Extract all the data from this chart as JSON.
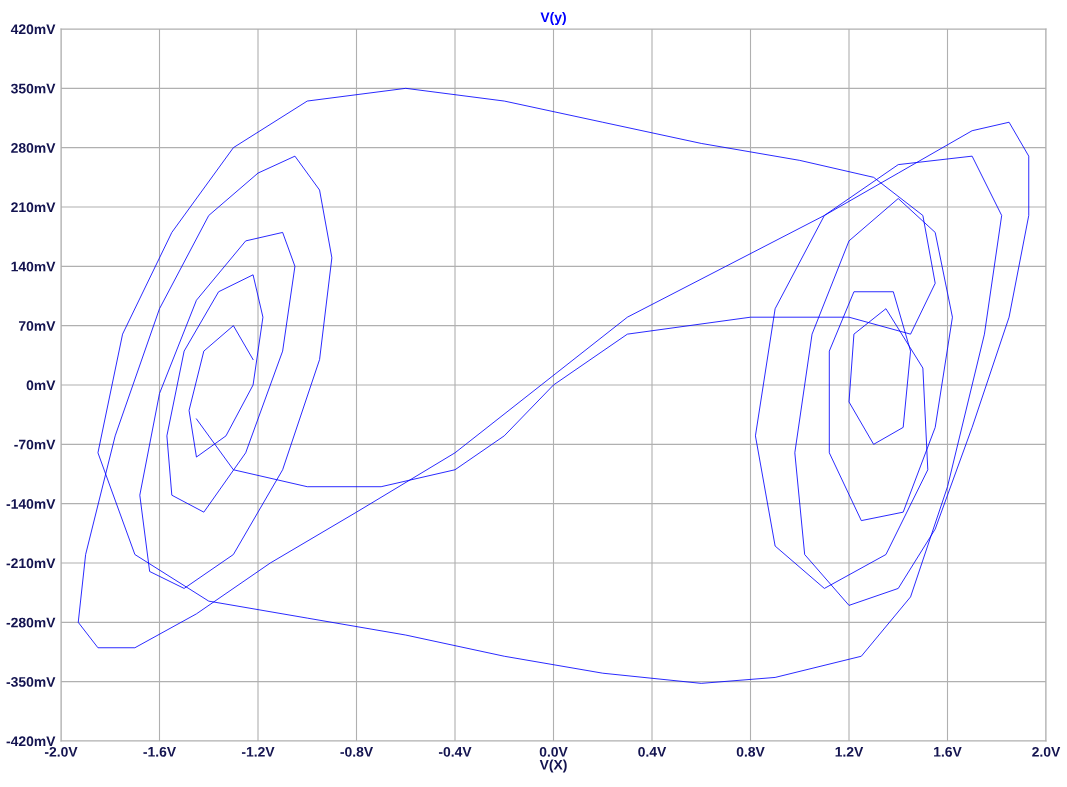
{
  "chart_data": {
    "type": "line",
    "title": "V(y)",
    "xlabel": "V(X)",
    "series": [
      {
        "color": "#0000ff",
        "x": [
          -1.22,
          -1.3,
          -1.42,
          -1.48,
          -1.45,
          -1.33,
          -1.22,
          -1.18,
          -1.22,
          -1.36,
          -1.5,
          -1.57,
          -1.55,
          -1.42,
          -1.25,
          -1.1,
          -1.05,
          -1.1,
          -1.25,
          -1.45,
          -1.6,
          -1.68,
          -1.64,
          -1.5,
          -1.3,
          -1.1,
          -0.95,
          -0.9,
          -0.95,
          -1.05,
          -1.2,
          -1.4,
          -1.6,
          -1.78,
          -1.9,
          -1.93,
          -1.85,
          -1.7,
          -1.45,
          -1.15,
          -0.8,
          -0.4,
          -0.05,
          0.3,
          0.7,
          1.1,
          1.4,
          1.7,
          1.85,
          1.93,
          1.93,
          1.85,
          1.7,
          1.55,
          1.4,
          1.2,
          1.02,
          0.98,
          1.05,
          1.2,
          1.4,
          1.55,
          1.62,
          1.55,
          1.42,
          1.25,
          1.12,
          1.12,
          1.22,
          1.38,
          1.45,
          1.42,
          1.3,
          1.2,
          1.22,
          1.35,
          1.5,
          1.52,
          1.35,
          1.1,
          0.9,
          0.82,
          0.9,
          1.1,
          1.4,
          1.7,
          1.82,
          1.75,
          1.6,
          1.45,
          1.25,
          0.9,
          0.6,
          0.2,
          -0.2,
          -0.6,
          -1.0,
          -1.4,
          -1.7,
          -1.85,
          -1.75,
          -1.55,
          -1.3,
          -1.0,
          -0.6,
          -0.2,
          0.2,
          0.6,
          1.0,
          1.3,
          1.5,
          1.55,
          1.45,
          1.2,
          0.8,
          0.3,
          0.0,
          -0.2,
          -0.4,
          -0.7,
          -1.0,
          -1.3,
          -1.45
        ],
        "values": [
          30,
          70,
          40,
          -30,
          -85,
          -60,
          0,
          80,
          130,
          110,
          40,
          -60,
          -130,
          -150,
          -80,
          40,
          140,
          180,
          170,
          100,
          -10,
          -130,
          -220,
          -240,
          -200,
          -100,
          30,
          150,
          230,
          270,
          250,
          200,
          90,
          -60,
          -200,
          -280,
          -310,
          -310,
          -270,
          -210,
          -150,
          -80,
          0,
          80,
          140,
          200,
          250,
          300,
          310,
          270,
          200,
          80,
          -50,
          -170,
          -240,
          -260,
          -200,
          -80,
          60,
          170,
          220,
          180,
          80,
          -50,
          -150,
          -160,
          -80,
          40,
          110,
          110,
          40,
          -50,
          -70,
          -20,
          60,
          90,
          20,
          -100,
          -200,
          -240,
          -190,
          -60,
          90,
          200,
          260,
          270,
          200,
          60,
          -120,
          -250,
          -320,
          -345,
          -352,
          -340,
          -320,
          -295,
          -275,
          -255,
          -200,
          -80,
          60,
          180,
          280,
          335,
          350,
          335,
          310,
          285,
          265,
          245,
          200,
          120,
          60,
          80,
          80,
          60,
          0,
          -60,
          -100,
          -120,
          -120,
          -100,
          -40
        ]
      }
    ],
    "xlim": [
      -2.0,
      2.0
    ],
    "xticks": [
      {
        "value": -2.0,
        "label": "-2.0V"
      },
      {
        "value": -1.6,
        "label": "-1.6V"
      },
      {
        "value": -1.2,
        "label": "-1.2V"
      },
      {
        "value": -0.8,
        "label": "-0.8V"
      },
      {
        "value": -0.4,
        "label": "-0.4V"
      },
      {
        "value": 0.0,
        "label": "0.0V"
      },
      {
        "value": 0.4,
        "label": "0.4V"
      },
      {
        "value": 0.8,
        "label": "0.8V"
      },
      {
        "value": 1.2,
        "label": "1.2V"
      },
      {
        "value": 1.6,
        "label": "1.6V"
      },
      {
        "value": 2.0,
        "label": "2.0V"
      }
    ],
    "ylim": [
      -420,
      420
    ],
    "yticks": [
      {
        "value": -420,
        "label": "-420mV"
      },
      {
        "value": -350,
        "label": "-350mV"
      },
      {
        "value": -280,
        "label": "-280mV"
      },
      {
        "value": -210,
        "label": "-210mV"
      },
      {
        "value": -140,
        "label": "-140mV"
      },
      {
        "value": -70,
        "label": "-70mV"
      },
      {
        "value": 0,
        "label": "0mV"
      },
      {
        "value": 70,
        "label": "70mV"
      },
      {
        "value": 140,
        "label": "140mV"
      },
      {
        "value": 210,
        "label": "210mV"
      },
      {
        "value": 280,
        "label": "280mV"
      },
      {
        "value": 350,
        "label": "350mV"
      },
      {
        "value": 420,
        "label": "420mV"
      }
    ],
    "grid": true,
    "line_style": "solid",
    "marker": "none"
  }
}
